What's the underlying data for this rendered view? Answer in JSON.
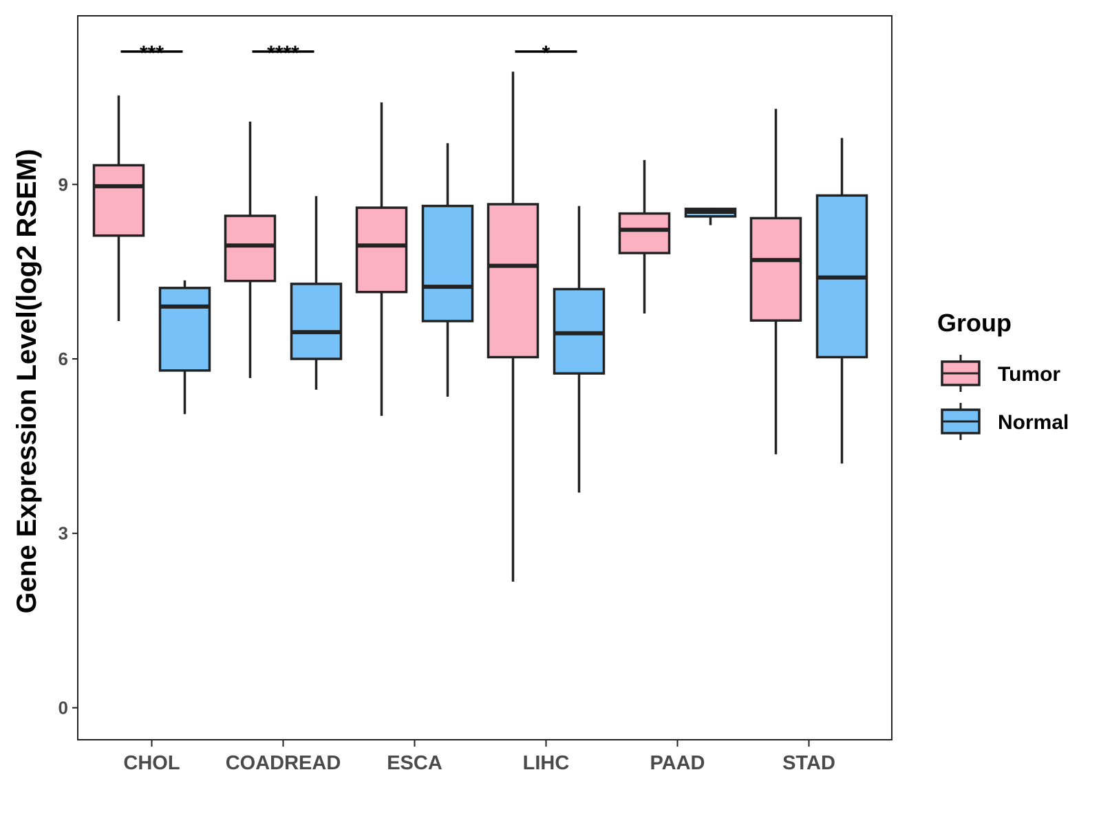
{
  "chart_data": {
    "type": "boxplot",
    "title": "",
    "xlabel": "",
    "ylabel": "Gene Expression Level(log2 RSEM)",
    "ylim": [
      -0.55,
      11.9
    ],
    "yticks": [
      0,
      3,
      6,
      9
    ],
    "grid": false,
    "categories": [
      "CHOL",
      "COADREAD",
      "ESCA",
      "LIHC",
      "PAAD",
      "STAD"
    ],
    "legend": {
      "title": "Group",
      "position": "right",
      "entries": [
        {
          "label": "Tumor",
          "color": "#FBB1C2"
        },
        {
          "label": "Normal",
          "color": "#75C1F8"
        }
      ]
    },
    "series": [
      {
        "name": "Tumor",
        "color": "#FBB1C2",
        "boxes": [
          {
            "min": 6.65,
            "q1": 8.12,
            "median": 8.97,
            "q3": 9.33,
            "max": 10.53
          },
          {
            "min": 5.67,
            "q1": 7.34,
            "median": 7.95,
            "q3": 8.46,
            "max": 10.08
          },
          {
            "min": 5.02,
            "q1": 7.15,
            "median": 7.95,
            "q3": 8.6,
            "max": 10.41
          },
          {
            "min": 2.17,
            "q1": 6.03,
            "median": 7.6,
            "q3": 8.66,
            "max": 10.94
          },
          {
            "min": 6.78,
            "q1": 7.82,
            "median": 8.22,
            "q3": 8.5,
            "max": 9.42
          },
          {
            "min": 4.36,
            "q1": 6.66,
            "median": 7.7,
            "q3": 8.42,
            "max": 10.3
          }
        ]
      },
      {
        "name": "Normal",
        "color": "#75C1F8",
        "boxes": [
          {
            "min": 5.05,
            "q1": 5.8,
            "median": 6.9,
            "q3": 7.22,
            "max": 7.35
          },
          {
            "min": 5.47,
            "q1": 6.0,
            "median": 6.46,
            "q3": 7.29,
            "max": 8.8
          },
          {
            "min": 5.35,
            "q1": 6.65,
            "median": 7.24,
            "q3": 8.63,
            "max": 9.71
          },
          {
            "min": 3.7,
            "q1": 5.75,
            "median": 6.44,
            "q3": 7.2,
            "max": 8.63
          },
          {
            "min": 8.3,
            "q1": 8.45,
            "median": 8.53,
            "q3": 8.58,
            "max": 8.6
          },
          {
            "min": 4.2,
            "q1": 6.03,
            "median": 7.4,
            "q3": 8.81,
            "max": 9.8
          }
        ]
      }
    ],
    "annotations": [
      {
        "category": "CHOL",
        "label": "***"
      },
      {
        "category": "COADREAD",
        "label": "****"
      },
      {
        "category": "LIHC",
        "label": "*"
      }
    ]
  }
}
